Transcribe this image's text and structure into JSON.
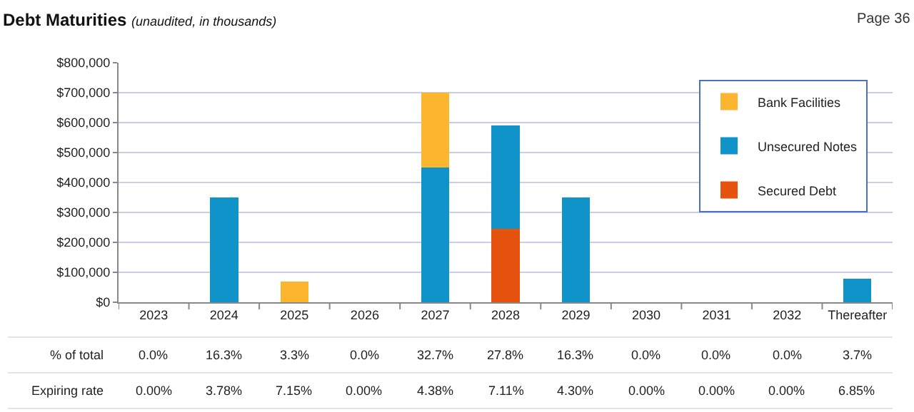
{
  "chart_data": {
    "type": "bar",
    "title": "Debt Maturities",
    "subtitle": "(unaudited, in thousands)",
    "categories": [
      "2023",
      "2024",
      "2025",
      "2026",
      "2027",
      "2028",
      "2029",
      "2030",
      "2031",
      "2032",
      "Thereafter"
    ],
    "stacked": true,
    "series": [
      {
        "name": "Secured Debt",
        "color": "#e5530f",
        "values": [
          0,
          0,
          0,
          0,
          0,
          245000,
          0,
          0,
          0,
          0,
          0
        ]
      },
      {
        "name": "Unsecured Notes",
        "color": "#0f93c8",
        "values": [
          0,
          350000,
          0,
          0,
          450000,
          345000,
          350000,
          0,
          0,
          0,
          78000
        ]
      },
      {
        "name": "Bank Facilities",
        "color": "#fbb52f",
        "values": [
          0,
          0,
          70000,
          0,
          250000,
          0,
          0,
          0,
          0,
          0,
          0
        ]
      }
    ],
    "ylim": [
      0,
      800000
    ],
    "yticks": [
      {
        "value": 0,
        "label": "$0"
      },
      {
        "value": 100000,
        "label": "$100,000"
      },
      {
        "value": 200000,
        "label": "$200,000"
      },
      {
        "value": 300000,
        "label": "$300,000"
      },
      {
        "value": 400000,
        "label": "$400,000"
      },
      {
        "value": 500000,
        "label": "$500,000"
      },
      {
        "value": 600000,
        "label": "$600,000"
      },
      {
        "value": 700000,
        "label": "$700,000"
      },
      {
        "value": 800000,
        "label": "$800,000"
      }
    ],
    "grid": "y",
    "legend": "top right",
    "annotations": [
      "Page 36",
      "% of total",
      "0.0%",
      "16.3%",
      "3.3%",
      "0.0%",
      "32.7%",
      "27.8%",
      "16.3%",
      "0.0%",
      "0.0%",
      "0.0%",
      "3.7%",
      "Expiring rate",
      "0.00%",
      "3.78%",
      "7.15%",
      "0.00%",
      "4.38%",
      "7.11%",
      "4.30%",
      "0.00%",
      "0.00%",
      "0.00%",
      "6.85%"
    ]
  }
}
